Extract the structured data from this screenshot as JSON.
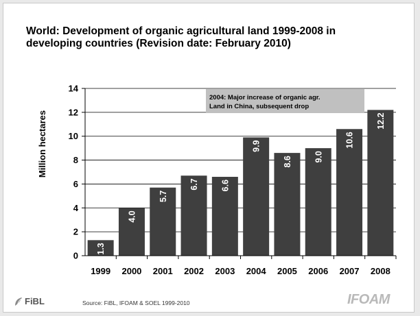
{
  "slide": {
    "title_line1": "World: Development of organic agricultural land 1999-2008 in",
    "title_line2": "developing countries (Revision date: February 2010)"
  },
  "footer": {
    "source": "Source: FiBL, IFOAM & SOEL 1999-2010",
    "logo_left": "FiBL",
    "logo_right": "IFOAM"
  },
  "chart_data": {
    "type": "bar",
    "categories": [
      "1999",
      "2000",
      "2001",
      "2002",
      "2003",
      "2004",
      "2005",
      "2006",
      "2007",
      "2008"
    ],
    "values": [
      1.3,
      4.0,
      5.7,
      6.7,
      6.6,
      9.9,
      8.6,
      9.0,
      10.6,
      12.2
    ],
    "data_labels": [
      "1.3",
      "4.0",
      "5.7",
      "6.7",
      "6.6",
      "9.9",
      "8.6",
      "9.0",
      "10.6",
      "12.2"
    ],
    "ylabel": "Million hectares",
    "xlabel": "",
    "ylim": [
      0,
      14
    ],
    "yticks": [
      0,
      2,
      4,
      6,
      8,
      10,
      12,
      14
    ],
    "grid": true,
    "annotation": {
      "line1": "2004: Major increase of organic agr.",
      "line2": "Land in China, subsequent drop"
    },
    "colors": {
      "bar": "#3f3f3f",
      "annotation_bg": "#c0c0c0",
      "label": "#ffffff"
    }
  }
}
